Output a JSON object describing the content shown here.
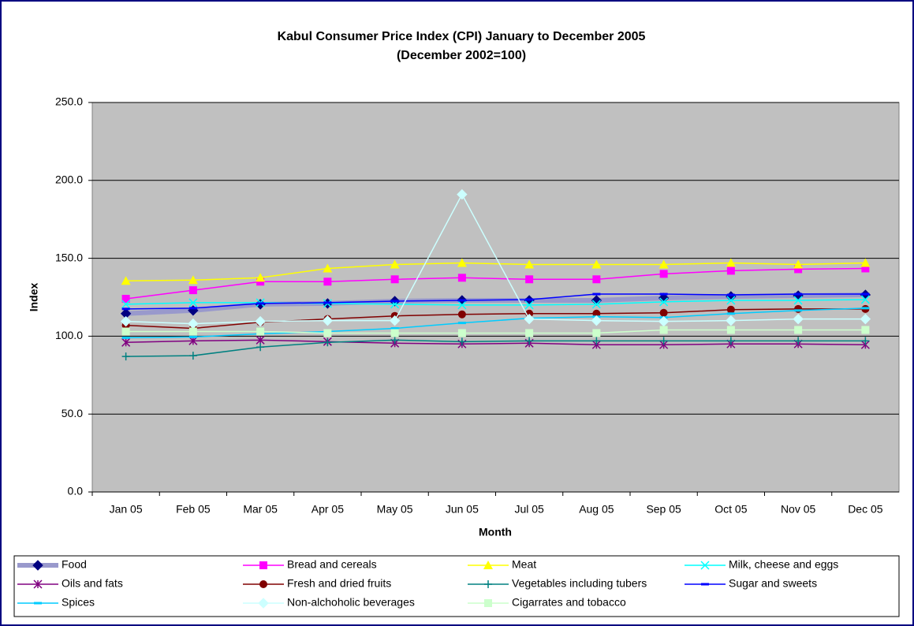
{
  "chart_data": {
    "type": "line",
    "title": "Kabul Consumer Price Index (CPI) January to December 2005",
    "subtitle": "(December 2002=100)",
    "x_label": "Month",
    "y_label": "Index",
    "categories": [
      "Jan 05",
      "Feb 05",
      "Mar 05",
      "Apr 05",
      "May 05",
      "Jun 05",
      "Jul 05",
      "Aug 05",
      "Sep 05",
      "Oct 05",
      "Nov 05",
      "Dec 05"
    ],
    "ylim": [
      0,
      250
    ],
    "yticks": [
      {
        "value": 0,
        "label": "0.0"
      },
      {
        "value": 50,
        "label": "50.0"
      },
      {
        "value": 100,
        "label": "100.0"
      },
      {
        "value": 150,
        "label": "150.0"
      },
      {
        "value": 200,
        "label": "200.0"
      },
      {
        "value": 250,
        "label": "250.0"
      }
    ],
    "grid": true,
    "legend": "bottom",
    "series": [
      {
        "name": "Food",
        "color": "#9999cc",
        "marker": "diamond",
        "marker_color": "#000080",
        "values": [
          114.5,
          116.5,
          120.5,
          121,
          122.5,
          123,
          123,
          123,
          124.5,
          125.5,
          126,
          126.5
        ]
      },
      {
        "name": "Bread and cereals",
        "color": "#ff00ff",
        "marker": "square",
        "values": [
          124,
          129.5,
          135,
          135,
          136.5,
          137.5,
          136.5,
          136.5,
          140,
          142,
          143,
          143.5
        ]
      },
      {
        "name": "Meat",
        "color": "#ffff00",
        "marker": "triangle",
        "values": [
          135.5,
          136,
          137.5,
          143.5,
          146,
          147,
          146,
          146,
          146,
          147,
          146,
          147
        ]
      },
      {
        "name": "Milk, cheese and eggs",
        "color": "#00ffff",
        "marker": "x",
        "values": [
          120.5,
          121.5,
          121.5,
          121,
          120.5,
          120,
          120,
          120.5,
          122,
          123,
          123,
          123.5
        ]
      },
      {
        "name": "Oils and fats",
        "color": "#800080",
        "marker": "star",
        "values": [
          96,
          97,
          97.5,
          96.5,
          95.5,
          95,
          95.5,
          94.5,
          94.5,
          95,
          95,
          94.5
        ]
      },
      {
        "name": "Fresh and dried fruits",
        "color": "#800000",
        "marker": "circle",
        "values": [
          107,
          105,
          109,
          111,
          113,
          114,
          114.5,
          114.5,
          115,
          117,
          117.5,
          117.5
        ]
      },
      {
        "name": "Vegetables including tubers",
        "color": "#008080",
        "marker": "plus",
        "values": [
          87,
          87.5,
          93,
          96,
          97.5,
          96.5,
          97,
          97,
          97,
          97,
          97,
          97
        ]
      },
      {
        "name": "Sugar and sweets",
        "color": "#0000ff",
        "marker": "dash",
        "values": [
          117.5,
          118,
          121,
          121.5,
          122.5,
          123,
          123.5,
          127,
          127,
          126.5,
          127,
          127
        ]
      },
      {
        "name": "Spices",
        "color": "#00ccff",
        "marker": "dash",
        "values": [
          99,
          99.5,
          101.5,
          103,
          105,
          108.5,
          111.5,
          112.5,
          112,
          114.5,
          116.5,
          118
        ]
      },
      {
        "name": "Non-alchoholic beverages",
        "color": "#ccffff",
        "marker": "diamond",
        "values": [
          109.5,
          108,
          109.5,
          110,
          110,
          191,
          111,
          110,
          109.5,
          110,
          111,
          111
        ]
      },
      {
        "name": "Cigarrates and tobacco",
        "color": "#ccffcc",
        "marker": "square",
        "values": [
          103,
          103,
          103,
          102,
          102,
          102,
          102,
          102,
          104,
          104,
          104,
          104
        ]
      }
    ]
  }
}
